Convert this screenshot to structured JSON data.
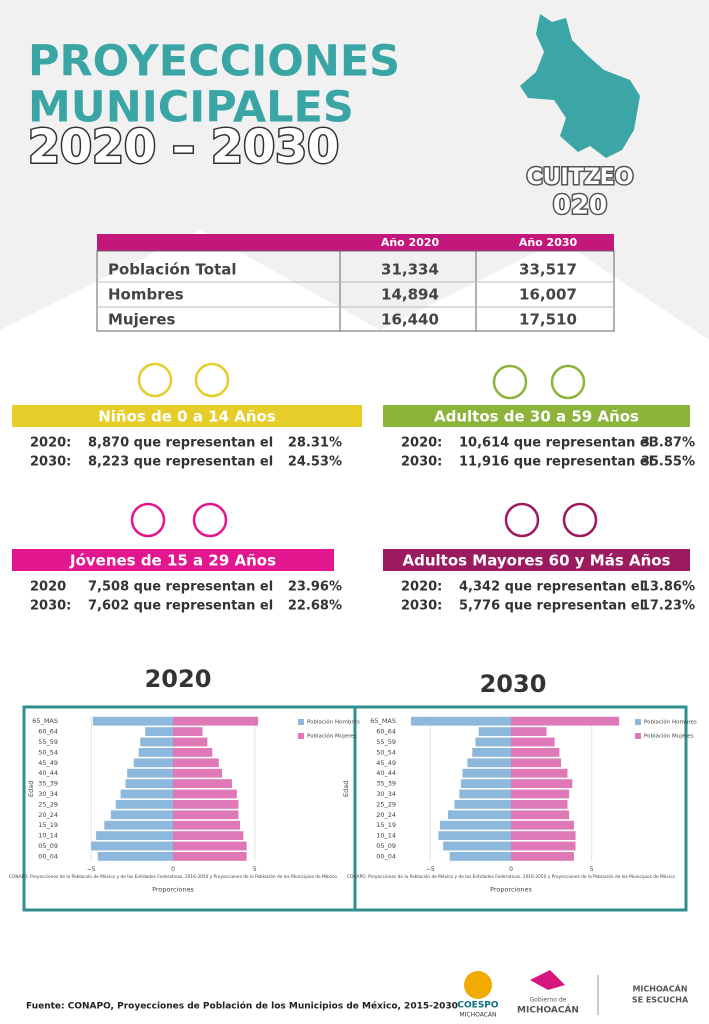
{
  "header": {
    "line1": "PROYECCIONES",
    "line2": "MUNICIPALES",
    "line3": "2020 – 2030",
    "municipality": "CUITZEO",
    "code": "020"
  },
  "table": {
    "header": [
      "Año 2020",
      "Año 2030"
    ],
    "rows": [
      [
        "Población Total",
        "31,334",
        "33,517"
      ],
      [
        "Hombres",
        "14,894",
        "16,007"
      ],
      [
        "Mujeres",
        "16,440",
        "17,510"
      ]
    ]
  },
  "groups": [
    {
      "title": "Niños de 0 a 14 Años",
      "color": "#e6cd2a",
      "lines": [
        {
          "year": "2020:",
          "text": "8,870 que representan el",
          "percent": "28.31%"
        },
        {
          "year": "2030:",
          "text": "8,223 que representan el",
          "percent": "24.53%"
        }
      ]
    },
    {
      "title": "Adultos de 30 a 59 Años",
      "color": "#8cb33a",
      "lines": [
        {
          "year": "2020:",
          "text": "10,614 que representan el",
          "percent": "33.87%"
        },
        {
          "year": "2030:",
          "text": "11,916 que representan el",
          "percent": "35.55%"
        }
      ]
    },
    {
      "title": "Jóvenes de 15 a 29 Años",
      "color": "#e2178f",
      "lines": [
        {
          "year": "2020",
          "text": "7,508 que representan el",
          "percent": "23.96%"
        },
        {
          "year": "2030:",
          "text": "7,602 que representan el",
          "percent": "22.68%"
        }
      ]
    },
    {
      "title": "Adultos Mayores  60 y Más Años",
      "color": "#9c1b5f",
      "lines": [
        {
          "year": "2020:",
          "text": "4,342 que representan el",
          "percent": "13.86%"
        },
        {
          "year": "2030:",
          "text": "5,776 que representan el",
          "percent": "17.23%"
        }
      ]
    }
  ],
  "chart_data": [
    {
      "type": "pyramid",
      "title": "2020",
      "x_label": "Proporciones",
      "y_label": "Edad",
      "note": "CONAPO. Proyecciones de la Población de México y de las Entidades Federativas, 2016-2050 y Proyecciones de la Población de los Municipios de México",
      "categories": [
        "65_MAS",
        "60_64",
        "55_59",
        "50_54",
        "45_49",
        "40_44",
        "35_39",
        "30_34",
        "25_29",
        "20_24",
        "15_19",
        "10_14",
        "05_09",
        "00_04"
      ],
      "series": [
        {
          "name": "Población Hombres",
          "color": "#8bb8dc",
          "values": [
            -4.9,
            -1.7,
            -2.0,
            -2.1,
            -2.4,
            -2.8,
            -2.9,
            -3.2,
            -3.5,
            -3.8,
            -4.2,
            -4.7,
            -5.0,
            -4.6
          ]
        },
        {
          "name": "Población Mujeres",
          "color": "#df78b7",
          "values": [
            5.2,
            1.8,
            2.1,
            2.4,
            2.8,
            3.0,
            3.6,
            3.9,
            4.0,
            4.0,
            4.1,
            4.3,
            4.5,
            4.5
          ]
        }
      ],
      "xlim": [
        -5.5,
        5.5
      ],
      "xticks": [
        {
          "value": -5,
          "label": "−5"
        },
        0,
        5
      ],
      "grid": true
    },
    {
      "type": "pyramid",
      "title": "2030",
      "x_label": "Proporciones",
      "y_label": "Edad",
      "note": "CONAPO. Proyecciones de la Población de México y de las Entidades Federativas, 2016-2050 y Proyecciones de la Población de los Municipios de México",
      "categories": [
        "65_MAS",
        "60_64",
        "55_59",
        "50_54",
        "45_49",
        "40_44",
        "35_39",
        "30_34",
        "25_29",
        "20_24",
        "15_19",
        "10_14",
        "05_09",
        "00_04"
      ],
      "series": [
        {
          "name": "Población Hombres",
          "color": "#8bb8dc",
          "values": [
            -6.2,
            -2.0,
            -2.2,
            -2.4,
            -2.7,
            -3.0,
            -3.1,
            -3.2,
            -3.5,
            -3.9,
            -4.4,
            -4.5,
            -4.2,
            -3.8
          ]
        },
        {
          "name": "Población Mujeres",
          "color": "#df78b7",
          "values": [
            6.7,
            2.2,
            2.7,
            3.0,
            3.1,
            3.5,
            3.8,
            3.6,
            3.5,
            3.6,
            3.9,
            4.0,
            4.0,
            3.9
          ]
        }
      ],
      "xlim": [
        -7,
        7
      ],
      "xticks": [
        {
          "value": -5,
          "label": "−5"
        },
        0,
        5
      ],
      "grid": true
    }
  ],
  "footer": {
    "source": "Fuente: CONAPO, Proyecciones de Población de los Municipios de México, 2015-2030",
    "coespo": "COESPO",
    "coespo_sub": "MICHOACÁN",
    "gob": "Gobierno de",
    "gob_sub": "MICHOACÁN",
    "escucha1": "MICHOACÁN",
    "escucha2": "SE ESCUCHA"
  }
}
